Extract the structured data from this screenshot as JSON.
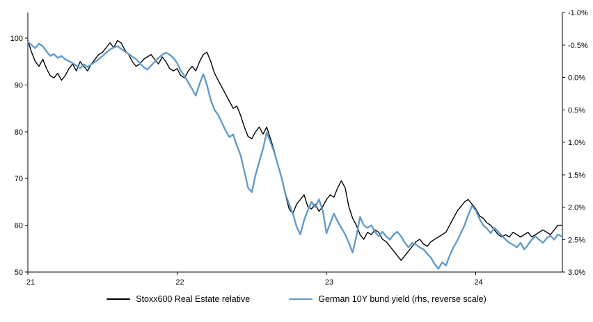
{
  "page": {
    "background": "#ffffff"
  },
  "chart_data": {
    "type": "line",
    "title": "",
    "xlabel": "",
    "ylabel_left": "",
    "ylabel_right": "",
    "grid": false,
    "legend_position": "bottom",
    "x_axis": {
      "min": 21,
      "max": 24.58,
      "ticks": [
        21,
        22,
        23,
        24
      ],
      "tick_labels": [
        "21",
        "22",
        "23",
        "24"
      ]
    },
    "left_axis": {
      "min": 50,
      "max": 105.5,
      "ticks": [
        100,
        90,
        80,
        70,
        60,
        50
      ],
      "tick_labels": [
        "100",
        "90",
        "80",
        "70",
        "60",
        "50"
      ]
    },
    "right_axis": {
      "top": -1.0,
      "bottom": 3.0,
      "reversed": true,
      "ticks": [
        -1.0,
        -0.5,
        0.0,
        0.5,
        1.0,
        1.5,
        2.0,
        2.5,
        3.0
      ],
      "tick_labels": [
        "-1.0%",
        "-0.5%",
        "0.0%",
        "0.5%",
        "1.0%",
        "1.5%",
        "2.0%",
        "2.5%",
        "3.0%"
      ]
    },
    "x": [
      21.0,
      21.025,
      21.05,
      21.075,
      21.1,
      21.125,
      21.15,
      21.175,
      21.2,
      21.225,
      21.25,
      21.275,
      21.3,
      21.325,
      21.35,
      21.375,
      21.4,
      21.425,
      21.45,
      21.475,
      21.5,
      21.525,
      21.55,
      21.575,
      21.6,
      21.625,
      21.65,
      21.675,
      21.7,
      21.725,
      21.75,
      21.775,
      21.8,
      21.825,
      21.85,
      21.875,
      21.9,
      21.925,
      21.95,
      21.975,
      22.0,
      22.025,
      22.05,
      22.075,
      22.1,
      22.125,
      22.15,
      22.175,
      22.2,
      22.225,
      22.25,
      22.275,
      22.3,
      22.325,
      22.35,
      22.375,
      22.4,
      22.425,
      22.45,
      22.475,
      22.5,
      22.525,
      22.55,
      22.575,
      22.6,
      22.625,
      22.65,
      22.675,
      22.7,
      22.725,
      22.75,
      22.775,
      22.8,
      22.825,
      22.85,
      22.875,
      22.9,
      22.925,
      22.95,
      22.975,
      23.0,
      23.025,
      23.05,
      23.075,
      23.1,
      23.125,
      23.15,
      23.175,
      23.2,
      23.225,
      23.25,
      23.275,
      23.3,
      23.325,
      23.35,
      23.375,
      23.4,
      23.425,
      23.45,
      23.475,
      23.5,
      23.525,
      23.55,
      23.575,
      23.6,
      23.625,
      23.65,
      23.675,
      23.7,
      23.725,
      23.75,
      23.775,
      23.8,
      23.825,
      23.85,
      23.875,
      23.9,
      23.925,
      23.95,
      23.975,
      24.0,
      24.025,
      24.05,
      24.075,
      24.1,
      24.125,
      24.15,
      24.175,
      24.2,
      24.225,
      24.25,
      24.275,
      24.3,
      24.325,
      24.35,
      24.375,
      24.4,
      24.425,
      24.45,
      24.475,
      24.5,
      24.525,
      24.55,
      24.575
    ],
    "series": [
      {
        "name": "Stoxx600 Real Estate relative",
        "axis": "left",
        "color": "#000000",
        "width": 1.4,
        "values": [
          99.5,
          97,
          95,
          94,
          95.5,
          93.5,
          92,
          91.5,
          92.5,
          91,
          92,
          93.5,
          94.5,
          93,
          95,
          94,
          93,
          94.5,
          95.5,
          96.5,
          97,
          98,
          99,
          98,
          99.5,
          99,
          97.5,
          96.5,
          95,
          94,
          94.5,
          95.5,
          96,
          96.5,
          95.5,
          94.5,
          96,
          95,
          93.5,
          93,
          93.5,
          92,
          91.5,
          93,
          94,
          93,
          95,
          96.5,
          97,
          95,
          92.5,
          91,
          89.5,
          88,
          86.5,
          85,
          85.5,
          83.5,
          81,
          79,
          78.5,
          80,
          81,
          79.5,
          81,
          78.5,
          76,
          73,
          70,
          66.5,
          63.5,
          62.5,
          64.5,
          65.5,
          66.5,
          64,
          63.5,
          64.5,
          63,
          64,
          65.5,
          66.5,
          66,
          68,
          69.5,
          68,
          64,
          61.5,
          60,
          58,
          57,
          58.5,
          58,
          59,
          58.5,
          57,
          56.5,
          55.5,
          54.5,
          53.5,
          52.5,
          53.5,
          54.5,
          55.5,
          56.5,
          57,
          56,
          55.5,
          56.5,
          57,
          57.5,
          58,
          58.5,
          60,
          61.5,
          63,
          64,
          65,
          65.5,
          64.5,
          63.5,
          62,
          61.5,
          60.5,
          60,
          59,
          58,
          57.5,
          58,
          57.5,
          58.5,
          58,
          57.5,
          58,
          58.5,
          57.5,
          58,
          58.5,
          59,
          58.5,
          58,
          59,
          60,
          60
        ]
      },
      {
        "name": "German 10Y bund yield (rhs, reverse scale)",
        "axis": "right",
        "color": "#629bcc",
        "width": 2.4,
        "values": [
          -0.55,
          -0.5,
          -0.45,
          -0.52,
          -0.48,
          -0.4,
          -0.33,
          -0.36,
          -0.3,
          -0.33,
          -0.28,
          -0.25,
          -0.22,
          -0.18,
          -0.14,
          -0.2,
          -0.16,
          -0.2,
          -0.24,
          -0.28,
          -0.33,
          -0.38,
          -0.43,
          -0.46,
          -0.48,
          -0.44,
          -0.4,
          -0.36,
          -0.32,
          -0.28,
          -0.22,
          -0.16,
          -0.12,
          -0.18,
          -0.24,
          -0.3,
          -0.35,
          -0.38,
          -0.35,
          -0.3,
          -0.22,
          -0.1,
          -0.02,
          0.08,
          0.18,
          0.28,
          0.1,
          -0.05,
          0.12,
          0.35,
          0.5,
          0.58,
          0.7,
          0.82,
          0.92,
          0.88,
          1.05,
          1.2,
          1.45,
          1.7,
          1.77,
          1.5,
          1.3,
          1.1,
          0.85,
          1,
          1.15,
          1.35,
          1.55,
          1.8,
          1.95,
          2.1,
          2.3,
          2.42,
          2.2,
          2.05,
          1.92,
          2,
          1.88,
          2.05,
          2.4,
          2.25,
          2.1,
          2.22,
          2.32,
          2.42,
          2.55,
          2.7,
          2.45,
          2.15,
          2.28,
          2.32,
          2.28,
          2.38,
          2.45,
          2.38,
          2.45,
          2.5,
          2.42,
          2.38,
          2.45,
          2.55,
          2.62,
          2.55,
          2.58,
          2.62,
          2.65,
          2.72,
          2.78,
          2.88,
          2.95,
          2.85,
          2.9,
          2.75,
          2.62,
          2.52,
          2.4,
          2.28,
          2.12,
          1.98,
          2.05,
          2.18,
          2.28,
          2.33,
          2.4,
          2.32,
          2.38,
          2.44,
          2.5,
          2.55,
          2.58,
          2.62,
          2.55,
          2.65,
          2.58,
          2.5,
          2.45,
          2.5,
          2.55,
          2.48,
          2.44,
          2.5,
          2.42,
          2.45
        ]
      }
    ]
  }
}
